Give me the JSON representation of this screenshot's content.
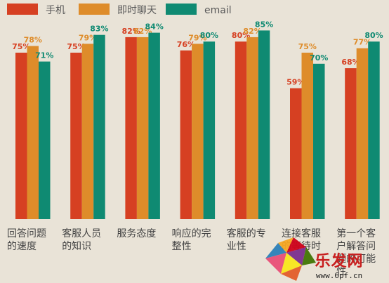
{
  "chart_data": {
    "type": "bar",
    "categories": [
      "回答问题\n的速度",
      "客服人员\n的知识",
      "服务态度",
      "响应的完\n整性",
      "客服的专\n业性",
      "连接客服\n的等待时",
      "第一个客\n户解答问\n题的可能\n性"
    ],
    "series": [
      {
        "name": "手机",
        "color": "#d64022",
        "values": [
          75,
          75,
          82,
          76,
          80,
          59,
          68
        ],
        "labels": [
          "75%",
          "75%",
          "82%",
          "76%",
          "80%",
          "59%",
          "68%"
        ]
      },
      {
        "name": "即时聊天",
        "color": "#de8c2a",
        "values": [
          78,
          79,
          82,
          79,
          82,
          75,
          77
        ],
        "labels": [
          "78%",
          "79%",
          "82%",
          "79%",
          "82%",
          "75%",
          "77%"
        ]
      },
      {
        "name": "email",
        "color": "#0f8a72",
        "values": [
          71,
          83,
          84,
          80,
          85,
          70,
          80
        ],
        "labels": [
          "71%",
          "83%",
          "84%",
          "80%",
          "85%",
          "70%",
          "80%"
        ]
      }
    ],
    "ylim": [
      0,
      100
    ],
    "legend_position": "top-left",
    "grid": false
  },
  "watermark": {
    "text": "乐发网",
    "url": "www.6pf.cn"
  }
}
